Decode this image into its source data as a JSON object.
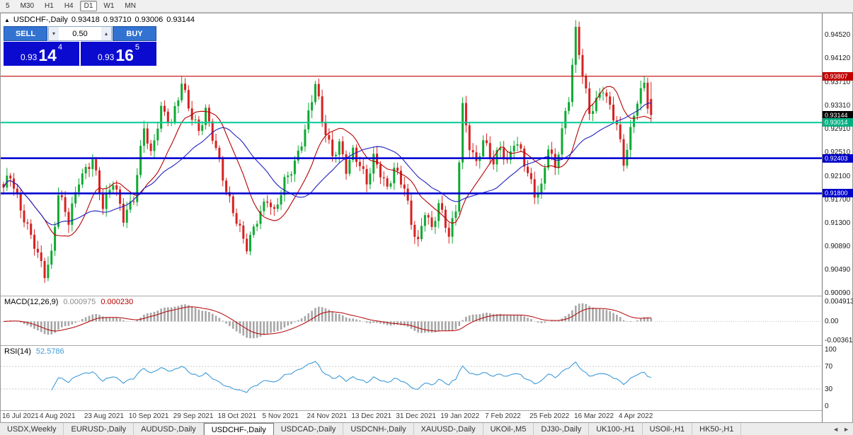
{
  "toolbar": {
    "timeframes": [
      "5",
      "M30",
      "H1",
      "H4",
      "D1",
      "W1",
      "MN"
    ],
    "active": "D1"
  },
  "symbol_header": {
    "collapse_icon": "▲",
    "title": "USDCHF-,Daily",
    "open": "0.93418",
    "high": "0.93710",
    "low": "0.93006",
    "close": "0.93144"
  },
  "one_click": {
    "sell_label": "SELL",
    "buy_label": "BUY",
    "volume": "0.50",
    "volume_down_icon": "▾",
    "volume_up_icon": "▴",
    "sell_price_prefix": "0.93",
    "sell_price_big": "14",
    "sell_price_sup": "4",
    "buy_price_prefix": "0.93",
    "buy_price_big": "16",
    "buy_price_sup": "5",
    "colors": {
      "button": "#3273d2",
      "price_bg": "#0b0bd0"
    }
  },
  "price_axis": {
    "main_labels": [
      "0.94520",
      "0.94120",
      "0.93710",
      "0.93310",
      "0.92910",
      "0.92510",
      "0.92100",
      "0.91700",
      "0.91300",
      "0.90890",
      "0.90490",
      "0.90090"
    ],
    "markers": [
      {
        "text": "0.93807",
        "bg": "#c00000"
      },
      {
        "text": "0.93144",
        "bg": "#000000"
      },
      {
        "text": "0.93014",
        "bg": "#00b080"
      },
      {
        "text": "0.92403",
        "bg": "#0000c8"
      },
      {
        "text": "0.91800",
        "bg": "#0000c8"
      }
    ]
  },
  "macd_panel": {
    "name": "MACD(12,26,9)",
    "value_main": "0.000975",
    "value_signal": "0.000230",
    "axis_labels": [
      "0.004913",
      "0.00",
      "-0.00361"
    ]
  },
  "rsi_panel": {
    "name": "RSI(14)",
    "value": "52.5786",
    "axis_labels": [
      "100",
      "70",
      "30",
      "0"
    ],
    "levels": [
      70,
      30
    ]
  },
  "date_axis": {
    "labels": [
      {
        "text": "16 Jul 2021",
        "bar": 0
      },
      {
        "text": "4 Aug 2021",
        "bar": 13
      },
      {
        "text": "23 Aug 2021",
        "bar": 26
      },
      {
        "text": "10 Sep 2021",
        "bar": 39
      },
      {
        "text": "29 Sep 2021",
        "bar": 52
      },
      {
        "text": "18 Oct 2021",
        "bar": 65
      },
      {
        "text": "5 Nov 2021",
        "bar": 78
      },
      {
        "text": "24 Nov 2021",
        "bar": 91
      },
      {
        "text": "13 Dec 2021",
        "bar": 104
      },
      {
        "text": "31 Dec 2021",
        "bar": 117
      },
      {
        "text": "19 Jan 2022",
        "bar": 130
      },
      {
        "text": "7 Feb 2022",
        "bar": 143
      },
      {
        "text": "25 Feb 2022",
        "bar": 156
      },
      {
        "text": "16 Mar 2022",
        "bar": 169
      },
      {
        "text": "4 Apr 2022",
        "bar": 182
      }
    ]
  },
  "tabs": {
    "items": [
      "USDX,Weekly",
      "EURUSD-,Daily",
      "AUDUSD-,Daily",
      "USDCHF-,Daily",
      "USDCAD-,Daily",
      "USDCNH-,Daily",
      "XAUUSD-,Daily",
      "UKOil-,M5",
      "DJ30-,Daily",
      "UK100-,H1",
      "USOil-,H1",
      "HK50-,H1"
    ],
    "active_index": 3,
    "scroll_left_icon": "◄",
    "scroll_right_icon": "►"
  },
  "chart_data": {
    "type": "candlestick",
    "symbol": "USDCHF-",
    "period": "Daily",
    "ylim": [
      0.8995,
      0.948
    ],
    "main": {
      "bar_count": 190,
      "bar_spacing": 4.84,
      "last_candle": [
        0.93418,
        0.9371,
        0.93006,
        0.93144
      ],
      "close_path": [
        [
          0,
          0.919
        ],
        [
          2,
          0.9206
        ],
        [
          5,
          0.9152
        ],
        [
          9,
          0.9098
        ],
        [
          12,
          0.9044
        ],
        [
          14,
          0.9072
        ],
        [
          16,
          0.9176
        ],
        [
          19,
          0.913
        ],
        [
          22,
          0.9206
        ],
        [
          26,
          0.9243
        ],
        [
          29,
          0.9156
        ],
        [
          32,
          0.9196
        ],
        [
          35,
          0.9136
        ],
        [
          38,
          0.9176
        ],
        [
          41,
          0.93
        ],
        [
          43,
          0.9246
        ],
        [
          46,
          0.932
        ],
        [
          49,
          0.9296
        ],
        [
          52,
          0.9371
        ],
        [
          55,
          0.9316
        ],
        [
          57,
          0.9291
        ],
        [
          59,
          0.9321
        ],
        [
          62,
          0.9251
        ],
        [
          65,
          0.9181
        ],
        [
          68,
          0.9136
        ],
        [
          71,
          0.9093
        ],
        [
          74,
          0.9136
        ],
        [
          77,
          0.9166
        ],
        [
          79,
          0.9141
        ],
        [
          82,
          0.9201
        ],
        [
          85,
          0.9236
        ],
        [
          88,
          0.9291
        ],
        [
          91,
          0.9367
        ],
        [
          93,
          0.9301
        ],
        [
          96,
          0.9241
        ],
        [
          98,
          0.9266
        ],
        [
          100,
          0.9226
        ],
        [
          102,
          0.9256
        ],
        [
          104,
          0.9231
        ],
        [
          106,
          0.9196
        ],
        [
          108,
          0.9236
        ],
        [
          110,
          0.9211
        ],
        [
          112,
          0.9186
        ],
        [
          114,
          0.9226
        ],
        [
          117,
          0.9196
        ],
        [
          119,
          0.9131
        ],
        [
          121,
          0.9093
        ],
        [
          123,
          0.9146
        ],
        [
          125,
          0.9113
        ],
        [
          127,
          0.9161
        ],
        [
          130,
          0.9113
        ],
        [
          132,
          0.9156
        ],
        [
          134,
          0.9331
        ],
        [
          136,
          0.9261
        ],
        [
          138,
          0.9226
        ],
        [
          140,
          0.9266
        ],
        [
          143,
          0.9233
        ],
        [
          145,
          0.9263
        ],
        [
          147,
          0.9236
        ],
        [
          149,
          0.9273
        ],
        [
          151,
          0.9251
        ],
        [
          153,
          0.9211
        ],
        [
          155,
          0.9173
        ],
        [
          157,
          0.9186
        ],
        [
          159,
          0.9263
        ],
        [
          161,
          0.9226
        ],
        [
          163,
          0.9293
        ],
        [
          165,
          0.9346
        ],
        [
          167,
          0.9456
        ],
        [
          169,
          0.9381
        ],
        [
          171,
          0.9313
        ],
        [
          173,
          0.9336
        ],
        [
          175,
          0.9363
        ],
        [
          177,
          0.9331
        ],
        [
          179,
          0.9303
        ],
        [
          181,
          0.9233
        ],
        [
          183,
          0.9283
        ],
        [
          185,
          0.9336
        ],
        [
          187,
          0.9363
        ],
        [
          188,
          0.9331
        ],
        [
          189,
          0.93144
        ]
      ],
      "forced_highs": [
        [
          52,
          0.9376
        ],
        [
          91,
          0.9373
        ],
        [
          134,
          0.9333
        ],
        [
          167,
          0.9462
        ]
      ],
      "forced_lows": [
        [
          12,
          0.9039
        ],
        [
          71,
          0.9089
        ],
        [
          121,
          0.9089
        ],
        [
          130,
          0.9106
        ]
      ],
      "hlines": [
        {
          "price": 0.93807,
          "color": "#c00000",
          "width": 1.2
        },
        {
          "price": 0.93014,
          "color": "#00cc96",
          "width": 2
        },
        {
          "price": 0.92403,
          "color": "#0000d2",
          "width": 2.6
        },
        {
          "price": 0.918,
          "color": "#0000d2",
          "width": 2.6
        }
      ],
      "moving_averages": [
        {
          "period": 13,
          "color": "#b40000"
        },
        {
          "period": 26,
          "color": "#2020c0"
        }
      ],
      "colors": {
        "up": "#0faa32",
        "down": "#d62121"
      }
    },
    "indicators": {
      "macd": {
        "fast": 12,
        "slow": 26,
        "signal": 9,
        "histogram_color": "#a6a6a6",
        "signal_color": "#b40000"
      },
      "rsi": {
        "period": 14,
        "line_color": "#3e9bd8"
      }
    }
  }
}
